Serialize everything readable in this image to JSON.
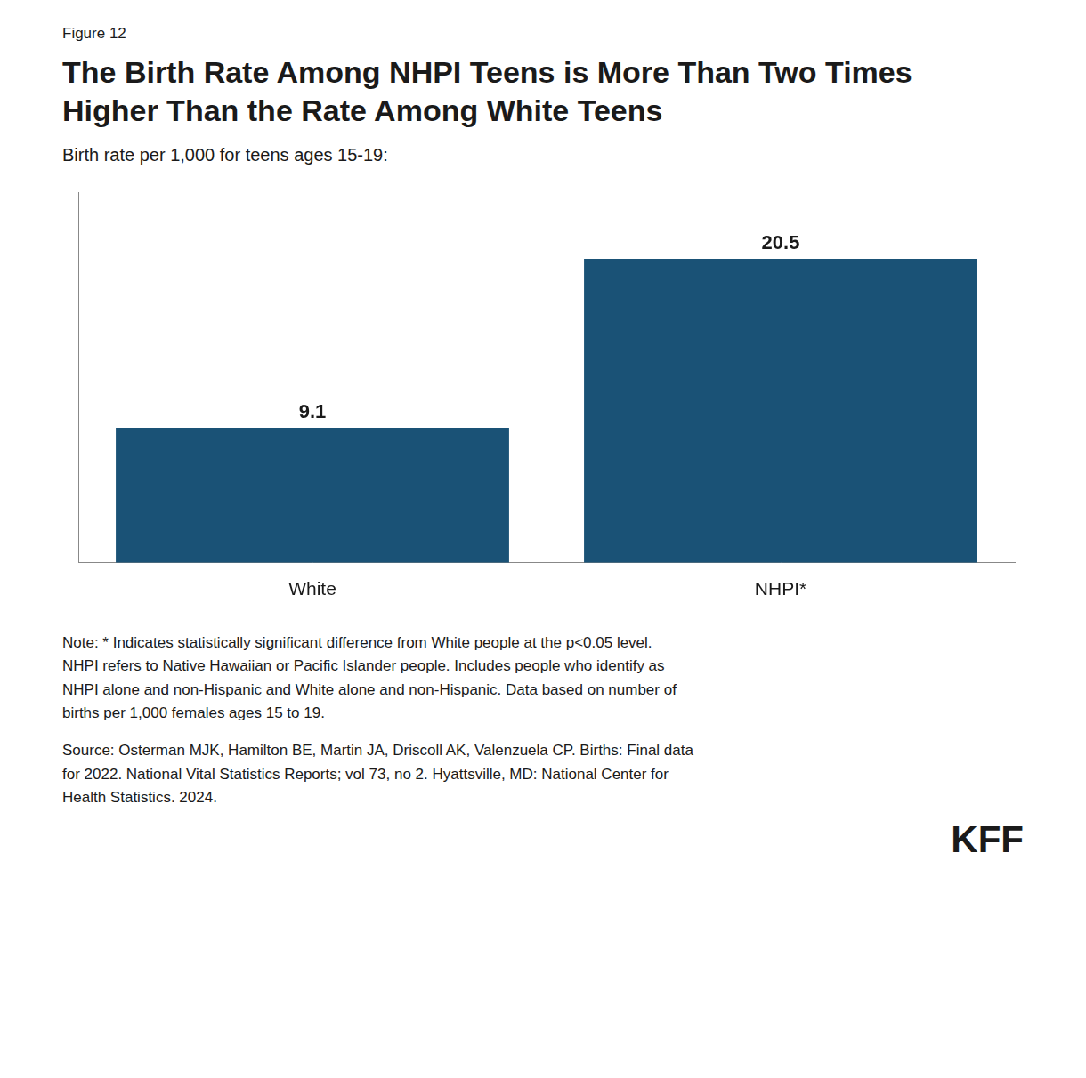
{
  "chart_data": {
    "type": "bar",
    "figure_label": "Figure 12",
    "title": "The Birth Rate Among NHPI Teens is More Than Two Times\nHigher Than the Rate Among White Teens",
    "subtitle": "Birth rate per 1,000 for teens ages 15-19:",
    "categories": [
      "White",
      "NHPI*"
    ],
    "values": [
      9.1,
      20.5
    ],
    "color": "#1a5276",
    "ylim": [
      0,
      25
    ],
    "grid": false,
    "data_labels": true,
    "tick_labels": "x",
    "note": "Note: * Indicates statistically significant difference from White people at the p<0.05 level.\nNHPI refers to Native Hawaiian or Pacific Islander people. Includes people who identify as\nNHPI alone and non-Hispanic and White alone and non-Hispanic. Data based on number of\nbirths per 1,000 females ages 15 to 19.",
    "source": "Source: Osterman MJK, Hamilton BE, Martin JA, Driscoll AK, Valenzuela CP. Births: Final data\nfor 2022. National Vital Statistics Reports; vol 73, no 2. Hyattsville, MD: National Center for\nHealth Statistics. 2024.",
    "logo": "KFF"
  }
}
